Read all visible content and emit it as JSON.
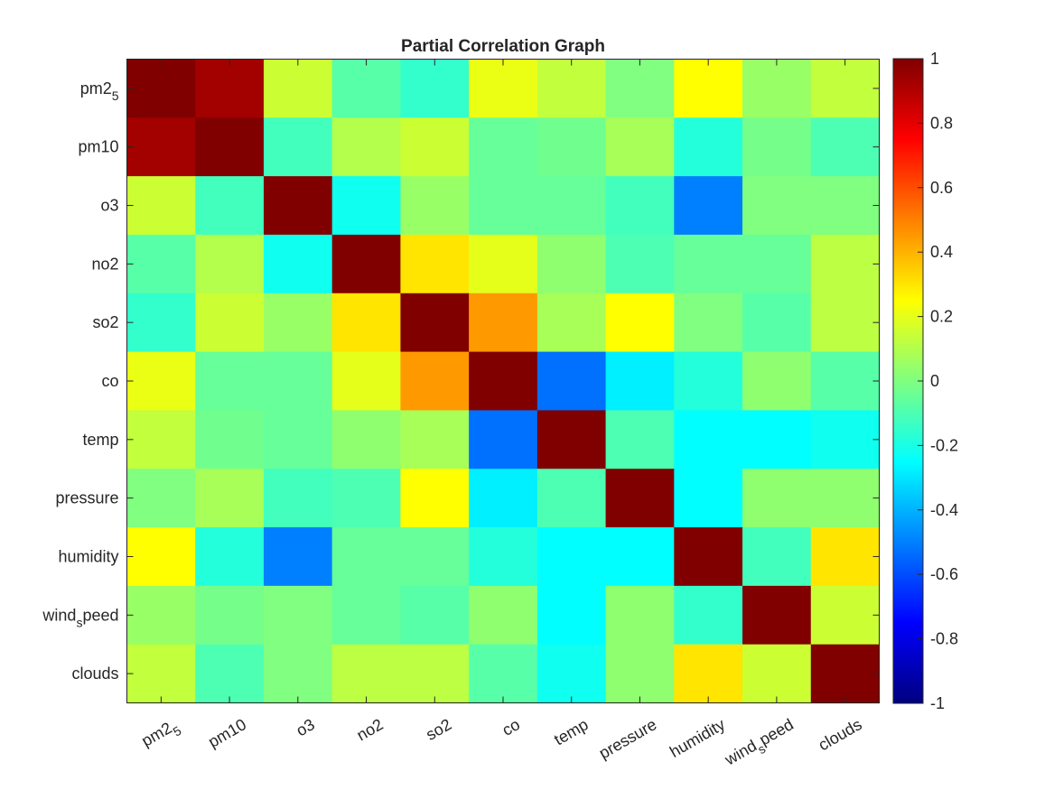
{
  "chart_data": {
    "type": "heatmap",
    "title": "Partial Correlation Graph",
    "labels": [
      {
        "base": "pm2",
        "sub": "5"
      },
      {
        "base": "pm10",
        "sub": ""
      },
      {
        "base": "o3",
        "sub": ""
      },
      {
        "base": "no2",
        "sub": ""
      },
      {
        "base": "so2",
        "sub": ""
      },
      {
        "base": "co",
        "sub": ""
      },
      {
        "base": "temp",
        "sub": ""
      },
      {
        "base": "pressure",
        "sub": ""
      },
      {
        "base": "humidity",
        "sub": ""
      },
      {
        "base": "wind",
        "sub": "s",
        "rest": "peed"
      },
      {
        "base": "clouds",
        "sub": ""
      }
    ],
    "matrix": [
      [
        1.0,
        0.93,
        0.15,
        -0.08,
        -0.15,
        0.21,
        0.13,
        0.0,
        0.25,
        0.05,
        0.13
      ],
      [
        0.93,
        1.0,
        -0.12,
        0.1,
        0.15,
        -0.05,
        -0.03,
        0.08,
        -0.18,
        -0.02,
        -0.1
      ],
      [
        0.15,
        -0.12,
        1.0,
        -0.22,
        0.05,
        -0.05,
        -0.05,
        -0.12,
        -0.5,
        0.0,
        0.0
      ],
      [
        -0.08,
        0.1,
        -0.22,
        1.0,
        0.3,
        0.2,
        0.03,
        -0.1,
        -0.05,
        -0.05,
        0.12
      ],
      [
        -0.15,
        0.15,
        0.05,
        0.3,
        1.0,
        0.45,
        0.08,
        0.25,
        0.0,
        -0.08,
        0.12
      ],
      [
        0.21,
        -0.05,
        -0.05,
        0.2,
        0.45,
        1.0,
        -0.53,
        -0.28,
        -0.18,
        0.03,
        -0.08
      ],
      [
        0.13,
        -0.03,
        -0.05,
        0.03,
        0.08,
        -0.53,
        1.0,
        -0.1,
        -0.25,
        -0.25,
        -0.22
      ],
      [
        0.0,
        0.08,
        -0.12,
        -0.1,
        0.25,
        -0.28,
        -0.1,
        1.0,
        -0.25,
        0.03,
        0.03
      ],
      [
        0.25,
        -0.18,
        -0.5,
        -0.05,
        -0.05,
        -0.18,
        -0.25,
        -0.25,
        1.0,
        -0.12,
        0.3
      ],
      [
        0.05,
        -0.02,
        0.0,
        -0.05,
        -0.08,
        0.03,
        -0.25,
        0.03,
        -0.15,
        1.0,
        0.15
      ],
      [
        0.13,
        -0.1,
        0.0,
        0.12,
        0.12,
        -0.08,
        -0.22,
        0.03,
        0.3,
        0.15,
        1.0
      ]
    ],
    "colormap": "jet",
    "clim": [
      -1,
      1
    ],
    "colorbar": {
      "ticks": [
        -1,
        -0.8,
        -0.6,
        -0.4,
        -0.2,
        0,
        0.2,
        0.4,
        0.6,
        0.8,
        1
      ],
      "tick_labels": [
        "-1",
        "-0.8",
        "-0.6",
        "-0.4",
        "-0.2",
        "0",
        "0.2",
        "0.4",
        "0.6",
        "0.8",
        "1"
      ]
    },
    "grid": false
  }
}
